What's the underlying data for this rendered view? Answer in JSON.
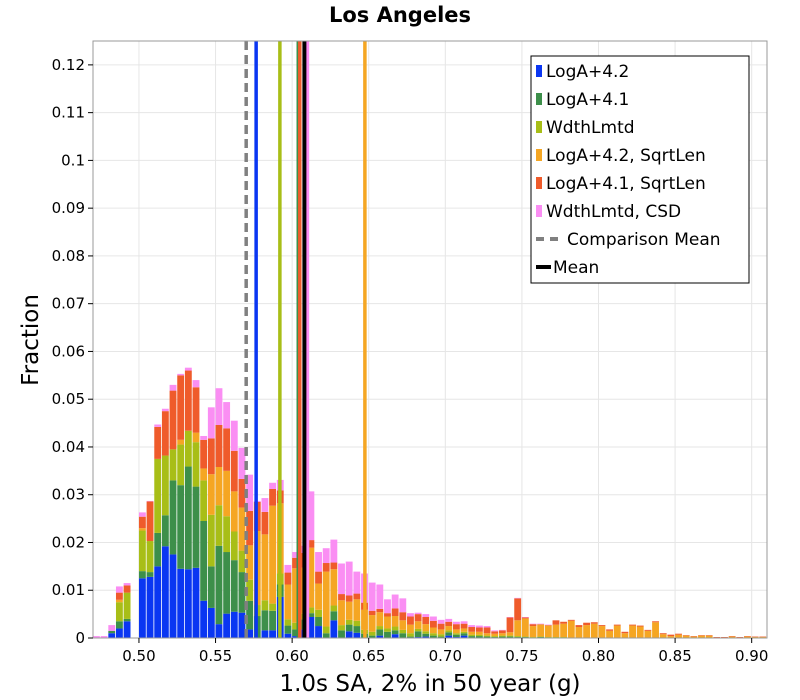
{
  "chart_data": {
    "type": "bar",
    "title": "Los Angeles",
    "xlabel": "1.0s SA, 2% in 50 year (g)",
    "ylabel": "Fraction",
    "xlim": [
      0.47,
      0.91
    ],
    "ylim": [
      0,
      0.125
    ],
    "xticks": [
      "0.50",
      "0.55",
      "0.60",
      "0.65",
      "0.70",
      "0.75",
      "0.80",
      "0.85",
      "0.90"
    ],
    "xtick_values": [
      0.5,
      0.55,
      0.6,
      0.65,
      0.7,
      0.75,
      0.8,
      0.85,
      0.9
    ],
    "yticks": [
      "0",
      "0.01",
      "0.02",
      "0.03",
      "0.04",
      "0.05",
      "0.06",
      "0.07",
      "0.08",
      "0.09",
      "0.1",
      "0.11",
      "0.12"
    ],
    "ytick_values": [
      0,
      0.01,
      0.02,
      0.03,
      0.04,
      0.05,
      0.06,
      0.07,
      0.08,
      0.09,
      0.1,
      0.11,
      0.12
    ],
    "grid": true,
    "legend_position": "top-right",
    "bin_width": 0.005,
    "bin_centers": [
      0.4725,
      0.4775,
      0.4825,
      0.4875,
      0.4925,
      0.4975,
      0.5025,
      0.5075,
      0.5125,
      0.5175,
      0.5225,
      0.5275,
      0.5325,
      0.5375,
      0.5425,
      0.5475,
      0.5525,
      0.5575,
      0.5625,
      0.5675,
      0.5725,
      0.5775,
      0.5825,
      0.5875,
      0.5925,
      0.5975,
      0.6025,
      0.6075,
      0.6125,
      0.6175,
      0.6225,
      0.6275,
      0.6325,
      0.6375,
      0.6425,
      0.6475,
      0.6525,
      0.6575,
      0.6625,
      0.6675,
      0.6725,
      0.6775,
      0.6825,
      0.6875,
      0.6925,
      0.6975,
      0.7025,
      0.7075,
      0.7125,
      0.7175,
      0.7225,
      0.7275,
      0.7325,
      0.7375,
      0.7425,
      0.7475,
      0.7525,
      0.7575,
      0.7625,
      0.7675,
      0.7725,
      0.7775,
      0.7825,
      0.7875,
      0.7925,
      0.7975,
      0.8025,
      0.8075,
      0.8125,
      0.8175,
      0.8225,
      0.8275,
      0.8325,
      0.8375,
      0.8425,
      0.8475,
      0.8525,
      0.8575,
      0.8625,
      0.8675,
      0.8725,
      0.8775,
      0.8825,
      0.8875,
      0.8925,
      0.8975,
      0.9025,
      0.9075
    ],
    "series": [
      {
        "name": "LogA+4.2",
        "color": "#0a36f2",
        "values": [
          0,
          0,
          0.001,
          0.002,
          0.0035,
          0,
          0.0125,
          0.0128,
          0.015,
          0.0192,
          0.0175,
          0.0145,
          0.0144,
          0.0147,
          0.0078,
          0.0063,
          0.0029,
          0.0051,
          0.0055,
          0.0053,
          0.0018,
          0.0001,
          0.0016,
          0.0016,
          0.0086,
          0.0009,
          0.0004,
          0.0018,
          0.0044,
          0.0025,
          0.0001,
          0.0037,
          0,
          0.0014,
          0.0011,
          0,
          0,
          0.0005,
          0,
          0.0008,
          0.0001,
          0,
          0.0002,
          0.0003,
          0,
          0,
          0.0005,
          0.0002,
          0.0005,
          0.0001,
          0,
          0.0001,
          0,
          0,
          0,
          0,
          0,
          0,
          0,
          0,
          0,
          0,
          0,
          0,
          0,
          0,
          0,
          0,
          0,
          0,
          0,
          0,
          0,
          0,
          0,
          0,
          0,
          0,
          0,
          0,
          0,
          0,
          0,
          0,
          0,
          0,
          0,
          0
        ]
      },
      {
        "name": "LogA+4.1",
        "color": "#3d8f4a",
        "values": [
          0,
          0,
          0.0005,
          0.0015,
          0.0005,
          0,
          0.0015,
          0.001,
          0.007,
          0.0065,
          0.0155,
          0.0175,
          0.0215,
          0.017,
          0.0167,
          0.0087,
          0.0164,
          0.0129,
          0.0108,
          0.0085,
          0.006,
          0.0045,
          0.0042,
          0.0041,
          0.0026,
          0.0017,
          0.0014,
          0.0021,
          0.0008,
          0.0019,
          0.0009,
          0.0019,
          0.0016,
          0.0014,
          0.0014,
          0.0009,
          0.0005,
          0.0013,
          0.0013,
          0.0008,
          0.0009,
          0.0003,
          0.0012,
          0.0006,
          0.0005,
          0.0003,
          0.0007,
          0.0005,
          0.0005,
          0.0003,
          0.0004,
          0.0002,
          0.0002,
          0.0003,
          0.0003,
          0.0002,
          0.0002,
          0.0001,
          0.0002,
          0.0001,
          0.0001,
          0.0001,
          0,
          0,
          0,
          0,
          0,
          0,
          0,
          0,
          0,
          0,
          0,
          0,
          0,
          0,
          0,
          0,
          0,
          0,
          0,
          0,
          0,
          0,
          0,
          0,
          0,
          0
        ]
      },
      {
        "name": "WdthLmtd",
        "color": "#a8be17",
        "values": [
          0,
          0,
          0,
          0.004,
          0.0055,
          0,
          0.0085,
          0.0065,
          0.0155,
          0.0125,
          0.0065,
          0.0085,
          0.0075,
          0.0093,
          0.0085,
          0.0108,
          0.0085,
          0.0075,
          0.006,
          0.0045,
          0.0044,
          0.0023,
          0.0021,
          0.0015,
          0.0023,
          0.0013,
          0.0014,
          0.0012,
          0.0012,
          0.0015,
          0.0014,
          0.0012,
          0.0011,
          0.001,
          0.0011,
          0.0008,
          0.0008,
          0.0007,
          0.0007,
          0.0008,
          0.0007,
          0.0007,
          0.0005,
          0.0005,
          0.0005,
          0.0005,
          0.0004,
          0.0003,
          0.0003,
          0.0003,
          0.0003,
          0.0002,
          0.0002,
          0.0002,
          0.0002,
          0.0002,
          0.0001,
          0.0001,
          0.0001,
          0.0001,
          0.0001,
          0.0001,
          0,
          0,
          0,
          0,
          0,
          0,
          0,
          0,
          0,
          0,
          0,
          0,
          0,
          0,
          0,
          0,
          0,
          0,
          0,
          0,
          0,
          0,
          0,
          0,
          0,
          0
        ]
      },
      {
        "name": "LogA+4.2, SqrtLen",
        "color": "#f5a623",
        "values": [
          0,
          0,
          0,
          0.0005,
          0,
          0,
          0.0005,
          0,
          0,
          0,
          0,
          0.001,
          0,
          0.002,
          0.0025,
          0.0085,
          0.008,
          0.0095,
          0.0084,
          0.009,
          0.0072,
          0.0155,
          0.0138,
          0.0205,
          0.0147,
          0.0073,
          0.0114,
          0.0096,
          0.0125,
          0.0055,
          0.0115,
          0.0076,
          0.0052,
          0.0038,
          0.0045,
          0.0042,
          0.0035,
          0.0029,
          0.0025,
          0.0022,
          0.002,
          0.0018,
          0.0016,
          0.0015,
          0.0012,
          0.001,
          0.0009,
          0.0008,
          0.0007,
          0.0006,
          0.0006,
          0.0005,
          0.0005,
          0.0005,
          0.0007,
          0.0033,
          0.0038,
          0.0023,
          0.0025,
          0.0024,
          0.0026,
          0.0028,
          0.0036,
          0.0023,
          0.0027,
          0.003,
          0.0025,
          0.0015,
          0.0026,
          0.001,
          0.0026,
          0.0024,
          0.0015,
          0.0033,
          0.0008,
          0.0004,
          0.0007,
          0.0005,
          0.0003,
          0.0005,
          0.0005,
          0.0001,
          0.0001,
          0.0003,
          0.0001,
          0.0003,
          0.0002,
          0.0002
        ]
      },
      {
        "name": "LogA+4.1, SqrtLen",
        "color": "#ef5b2b",
        "values": [
          0,
          0,
          0,
          0.0015,
          0.0015,
          0,
          0.0024,
          0.0083,
          0.0067,
          0.0093,
          0.0123,
          0.0135,
          0.0126,
          0.0095,
          0.006,
          0.0075,
          0.0088,
          0.0089,
          0.0085,
          0.006,
          0.0072,
          0.0061,
          0.0047,
          0.0035,
          0.0027,
          0.0025,
          0.0022,
          0.0031,
          0.0016,
          0.0025,
          0.0018,
          0.0014,
          0.0013,
          0.0013,
          0.0012,
          0.0015,
          0.0009,
          0.0007,
          0.0007,
          0.0016,
          0.0017,
          0.0017,
          0.0015,
          0.0015,
          0.0014,
          0.0012,
          0.0009,
          0.0011,
          0.001,
          0.001,
          0.0009,
          0.0012,
          0.0005,
          0.0006,
          0.0031,
          0.0046,
          0.0002,
          0.0004,
          0.0001,
          0.0001,
          0.0009,
          0.0004,
          0.0002,
          0.0004,
          0.0005,
          0.0003,
          0.0002,
          0.0003,
          0.0002,
          0.0003,
          0.0002,
          0.0002,
          0.0002,
          0.0002,
          0.0002,
          0.0003,
          0.0002,
          0.0001,
          0.0001,
          0.0001,
          0.0001,
          0.0001,
          0.0001,
          0.0001,
          0.0001,
          0.0001,
          0.0001,
          0.0001
        ]
      },
      {
        "name": "WdthLmtd, CSD",
        "color": "#fa8ef3",
        "values": [
          0.0004,
          0.0004,
          0.0012,
          0.0013,
          0.0005,
          0,
          0.0009,
          0.0001,
          0.0005,
          0.0005,
          0.0012,
          0.0003,
          0.0006,
          0.0015,
          0.0008,
          0.0065,
          0.0077,
          0.0055,
          0.0063,
          0.0065,
          0.0076,
          0.0002,
          0.0029,
          0.0013,
          0.0022,
          0.0016,
          0.0012,
          0.0015,
          0.0102,
          0.0041,
          0.0031,
          0.0048,
          0.0064,
          0.0071,
          0.0046,
          0.0061,
          0.0059,
          0.0051,
          0.0029,
          0.0029,
          0.0029,
          0.0007,
          0.0003,
          0.0006,
          0.0009,
          0.0008,
          0.0006,
          0.0005,
          0.0005,
          0.0004,
          0.0004,
          0.0003,
          0.0002,
          0.0001,
          0.0001,
          0.0001,
          0.0001,
          0.0001,
          0.0001,
          0.0001,
          0,
          0,
          0,
          0,
          0,
          0,
          0,
          0,
          0,
          0,
          0,
          0,
          0,
          0,
          0,
          0,
          0,
          0,
          0,
          0,
          0,
          0,
          0,
          0,
          0,
          0,
          0,
          0
        ]
      }
    ],
    "vertical_lines": [
      {
        "name": "Comparison Mean",
        "x": 0.57,
        "color": "#808080",
        "style": "dashed"
      },
      {
        "name": "LogA+4.2",
        "x": 0.5765,
        "color": "#0a36f2",
        "style": "solid"
      },
      {
        "name": "WdthLmtd",
        "x": 0.592,
        "color": "#a8be17",
        "style": "solid"
      },
      {
        "name": "LogA+4.1",
        "x": 0.604,
        "color": "#3d8f4a",
        "style": "solid"
      },
      {
        "name": "LogA+4.1, SqrtLen",
        "x": 0.605,
        "color": "#ef5b2b",
        "style": "solid"
      },
      {
        "name": "WdthLmtd, CSD",
        "x": 0.61,
        "color": "#fa8ef3",
        "style": "solid"
      },
      {
        "name": "LogA+4.2, SqrtLen",
        "x": 0.6475,
        "color": "#f5a623",
        "style": "solid"
      },
      {
        "name": "Mean",
        "x": 0.608,
        "color": "#000000",
        "style": "solid"
      }
    ],
    "legend": [
      {
        "label": "LogA+4.2",
        "color": "#0a36f2",
        "kind": "box"
      },
      {
        "label": "LogA+4.1",
        "color": "#3d8f4a",
        "kind": "box"
      },
      {
        "label": "WdthLmtd",
        "color": "#a8be17",
        "kind": "box"
      },
      {
        "label": "LogA+4.2, SqrtLen",
        "color": "#f5a623",
        "kind": "box"
      },
      {
        "label": "LogA+4.1, SqrtLen",
        "color": "#ef5b2b",
        "kind": "box"
      },
      {
        "label": "WdthLmtd, CSD",
        "color": "#fa8ef3",
        "kind": "box"
      },
      {
        "label": "Comparison Mean",
        "color": "#808080",
        "kind": "dashed"
      },
      {
        "label": "Mean",
        "color": "#000000",
        "kind": "line"
      }
    ]
  }
}
